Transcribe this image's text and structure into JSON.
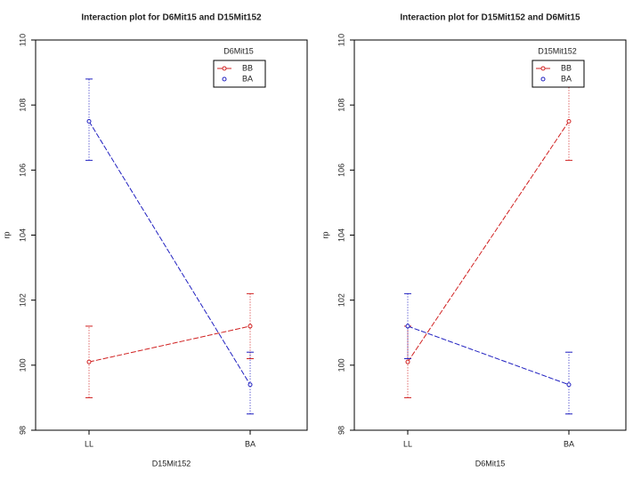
{
  "chart_data": [
    {
      "type": "line",
      "title": "Interaction plot for D6Mit15 and D15Mit152",
      "xlabel": "D15Mit152",
      "ylabel": "rp",
      "categories": [
        "LL",
        "BA"
      ],
      "legend_title": "D6Mit15",
      "legend": "upper right",
      "ylim": [
        98,
        110
      ],
      "yticks": [
        98,
        100,
        102,
        104,
        106,
        108,
        110
      ],
      "series": [
        {
          "name": "BB",
          "color": "#d02020",
          "values": [
            100.1,
            101.2
          ],
          "lower": [
            99.0,
            100.2
          ],
          "upper": [
            101.2,
            102.2
          ]
        },
        {
          "name": "BA",
          "color": "#2020c0",
          "values": [
            107.5,
            99.4
          ],
          "lower": [
            106.3,
            98.5
          ],
          "upper": [
            108.8,
            100.4
          ]
        }
      ]
    },
    {
      "type": "line",
      "title": "Interaction plot for D15Mit152 and D6Mit15",
      "xlabel": "D6Mit15",
      "ylabel": "rp",
      "categories": [
        "LL",
        "BA"
      ],
      "legend_title": "D15Mit152",
      "legend": "upper right",
      "ylim": [
        98,
        110
      ],
      "yticks": [
        98,
        100,
        102,
        104,
        106,
        108,
        110
      ],
      "series": [
        {
          "name": "BB",
          "color": "#d02020",
          "values": [
            100.1,
            107.5
          ],
          "lower": [
            99.0,
            106.3
          ],
          "upper": [
            101.2,
            108.8
          ]
        },
        {
          "name": "BA",
          "color": "#2020c0",
          "values": [
            101.2,
            99.4
          ],
          "lower": [
            100.2,
            98.5
          ],
          "upper": [
            102.2,
            100.4
          ]
        }
      ]
    }
  ]
}
